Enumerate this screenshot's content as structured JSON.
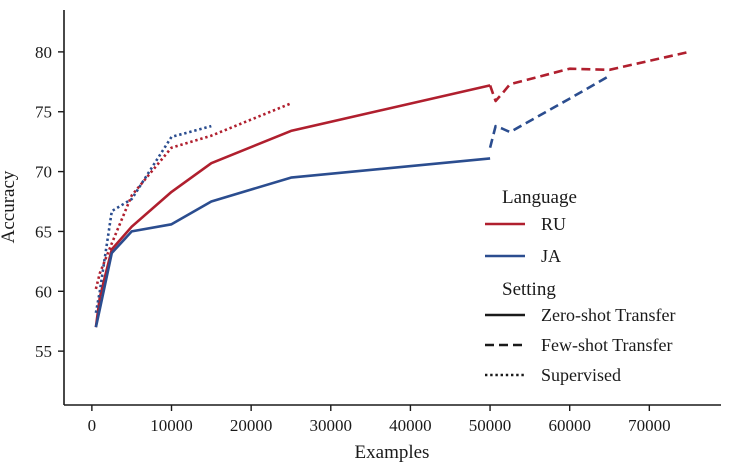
{
  "chart_data": {
    "type": "line",
    "xlabel": "Examples",
    "ylabel": "Accuracy",
    "xlim": [
      -3500,
      79000
    ],
    "ylim": [
      50.5,
      83.5
    ],
    "x_ticks": [
      0,
      10000,
      20000,
      30000,
      40000,
      50000,
      60000,
      70000
    ],
    "y_ticks": [
      55,
      60,
      65,
      70,
      75,
      80
    ],
    "grid": false,
    "legend_position": "right",
    "colors": {
      "RU": "#b01f2e",
      "JA": "#2b4d8f",
      "axis": "#1a1a1a"
    },
    "legend": {
      "language_title": "Language",
      "languages": [
        {
          "key": "RU",
          "label": "RU"
        },
        {
          "key": "JA",
          "label": "JA"
        }
      ],
      "setting_title": "Setting",
      "settings": [
        {
          "key": "zero",
          "label": "Zero-shot Transfer",
          "dash": "solid"
        },
        {
          "key": "few",
          "label": "Few-shot Transfer",
          "dash": "dashed"
        },
        {
          "key": "sup",
          "label": "Supervised",
          "dash": "dotted"
        }
      ]
    },
    "series": [
      {
        "language": "RU",
        "setting": "zero",
        "x": [
          500,
          1000,
          2500,
          5000,
          10000,
          15000,
          25000,
          50000
        ],
        "y": [
          57.0,
          59.5,
          63.5,
          65.4,
          68.3,
          70.7,
          73.4,
          77.2
        ]
      },
      {
        "language": "JA",
        "setting": "zero",
        "x": [
          500,
          1000,
          2500,
          5000,
          10000,
          15000,
          25000,
          50000
        ],
        "y": [
          57.0,
          58.5,
          63.2,
          65.0,
          65.6,
          67.5,
          69.5,
          71.1
        ]
      },
      {
        "language": "RU",
        "setting": "few",
        "x": [
          50000,
          50700,
          51500,
          52500,
          60000,
          65000,
          75000
        ],
        "y": [
          77.2,
          75.9,
          76.5,
          77.3,
          78.6,
          78.5,
          80.0
        ]
      },
      {
        "language": "JA",
        "setting": "few",
        "x": [
          50000,
          50700,
          51500,
          52500,
          60000,
          65000
        ],
        "y": [
          72.0,
          73.8,
          73.6,
          73.3,
          76.1,
          78.0
        ]
      },
      {
        "language": "RU",
        "setting": "sup",
        "x": [
          500,
          1000,
          2500,
          5000,
          10000,
          15000,
          25000
        ],
        "y": [
          60.2,
          61.5,
          64.0,
          68.0,
          72.0,
          73.0,
          75.7
        ]
      },
      {
        "language": "JA",
        "setting": "sup",
        "x": [
          500,
          1000,
          2500,
          5000,
          10000,
          15000
        ],
        "y": [
          58.2,
          60.0,
          66.7,
          67.7,
          72.9,
          73.8
        ]
      }
    ]
  }
}
